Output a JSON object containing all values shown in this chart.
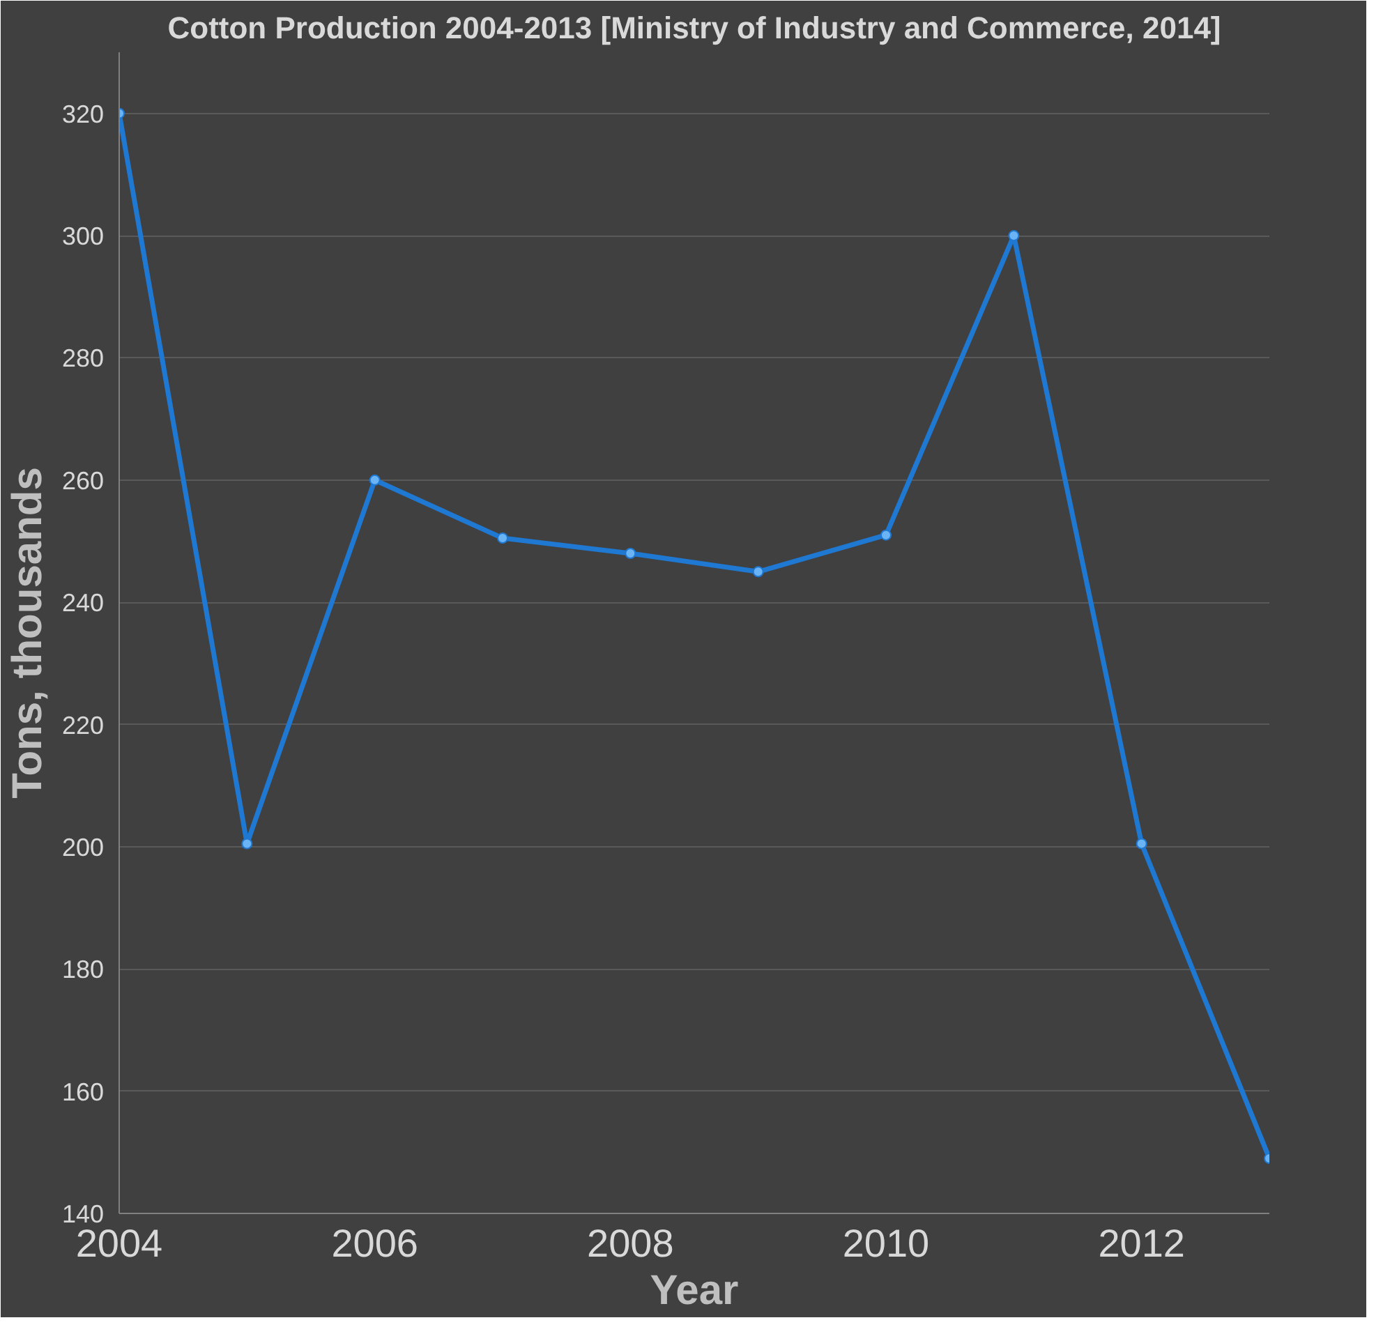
{
  "chart_data": {
    "type": "line",
    "title": "Cotton Production 2004-2013 [Ministry of Industry and Commerce, 2014]",
    "xlabel": "Year",
    "ylabel": "Tons, thousands",
    "x": [
      2004,
      2005,
      2006,
      2007,
      2008,
      2009,
      2010,
      2011,
      2012,
      2013
    ],
    "series": [
      {
        "color": "#1f78d1",
        "values": [
          320,
          200.5,
          260,
          250.5,
          248,
          245,
          251,
          300,
          200.5,
          149
        ]
      }
    ],
    "xlim": [
      2004,
      2013
    ],
    "xticks": [
      2004,
      2006,
      2008,
      2010,
      2012
    ],
    "ylim": [
      140,
      330
    ],
    "yticks": [
      140,
      160,
      180,
      200,
      220,
      240,
      260,
      280,
      300,
      320
    ],
    "grid": "y",
    "marker": "circle",
    "line_style": "solid"
  }
}
